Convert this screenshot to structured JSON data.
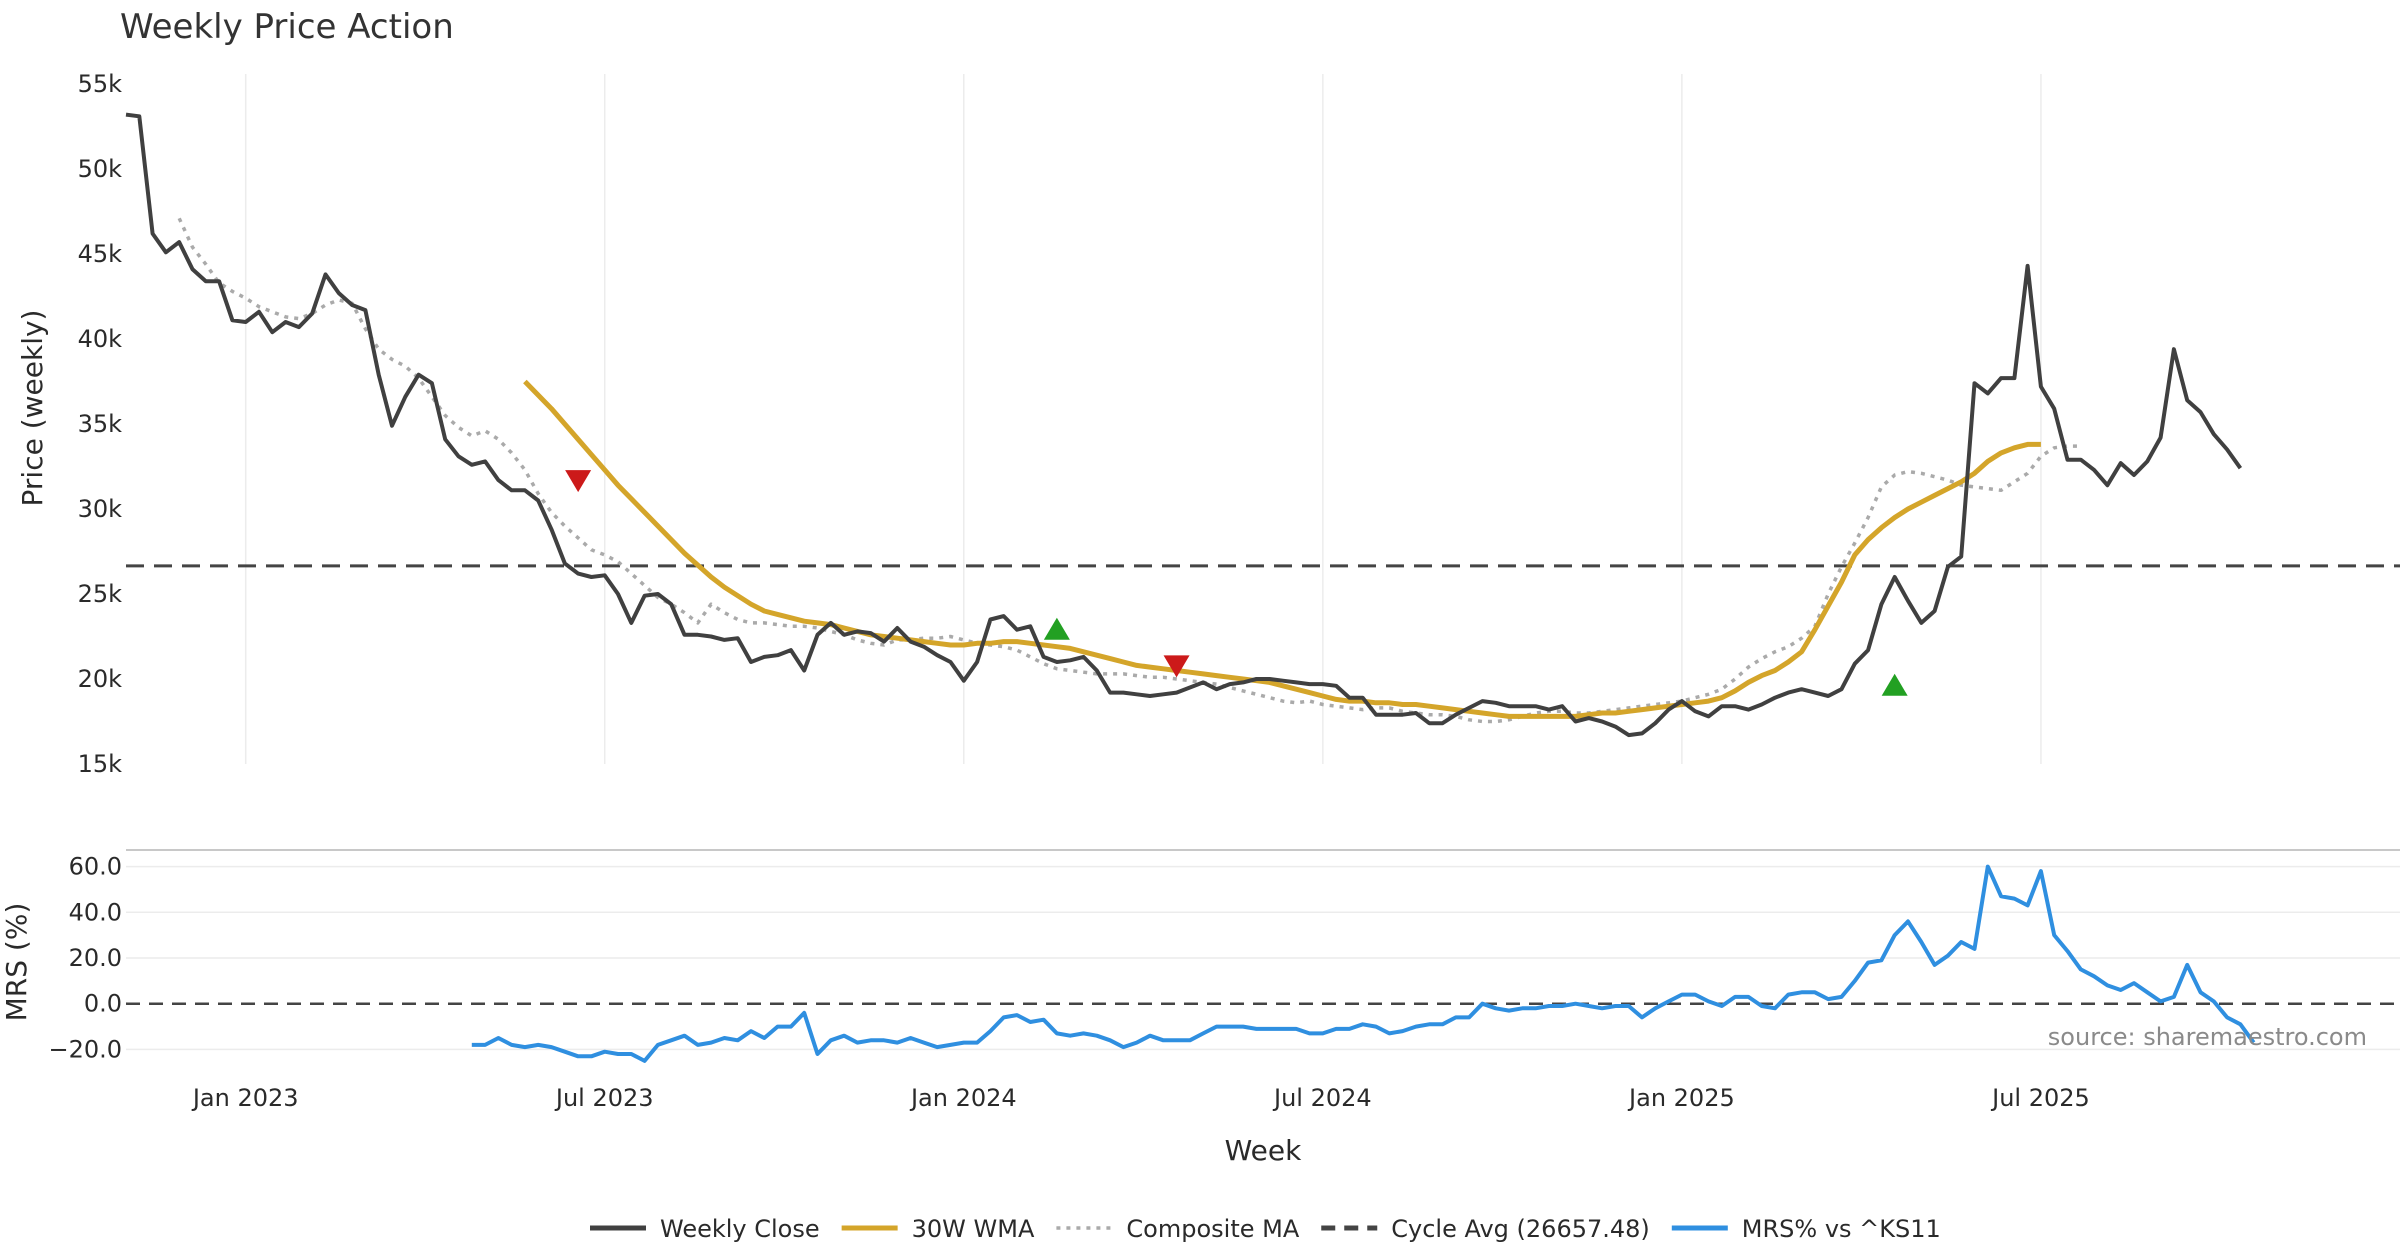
{
  "chart_data": [
    {
      "type": "line",
      "title": "Weekly Price Action",
      "xlabel": "Week",
      "ylabel": "Price (weekly)",
      "ylim": [
        15000,
        55000
      ],
      "y_ticks": [
        15000,
        20000,
        25000,
        30000,
        35000,
        40000,
        45000,
        50000,
        55000
      ],
      "y_tick_labels": [
        "15k",
        "20k",
        "25k",
        "30k",
        "35k",
        "40k",
        "45k",
        "50k",
        "55k"
      ],
      "x_range_weeks": [
        0,
        171
      ],
      "x_ticks": [
        {
          "week": 9,
          "label": "Jan 2023"
        },
        {
          "week": 36,
          "label": "Jul 2023"
        },
        {
          "week": 63,
          "label": "Jan 2024"
        },
        {
          "week": 90,
          "label": "Jul 2024"
        },
        {
          "week": 117,
          "label": "Jan 2025"
        },
        {
          "week": 144,
          "label": "Jul 2025"
        }
      ],
      "grid": "vertical",
      "cycle_avg": 26657.48,
      "series": [
        {
          "name": "Weekly Close",
          "color": "#404040",
          "start_week": 0,
          "values": [
            53200,
            53100,
            46200,
            45100,
            45700,
            44100,
            43400,
            43400,
            41100,
            41000,
            41600,
            40400,
            41000,
            40700,
            41500,
            43800,
            42700,
            42000,
            41700,
            37900,
            34900,
            36600,
            37900,
            37400,
            34100,
            33100,
            32600,
            32800,
            31700,
            31100,
            31100,
            30500,
            28800,
            26800,
            26200,
            26000,
            26100,
            25000,
            23300,
            24900,
            25000,
            24400,
            22600,
            22600,
            22500,
            22300,
            22400,
            21000,
            21300,
            21400,
            21700,
            20500,
            22600,
            23300,
            22600,
            22800,
            22700,
            22200,
            23000,
            22200,
            21900,
            21400,
            21000,
            19900,
            21000,
            23500,
            23700,
            22900,
            23100,
            21300,
            21000,
            21100,
            21300,
            20500,
            19200,
            19200,
            19100,
            19000,
            19100,
            19200,
            19500,
            19800,
            19400,
            19700,
            19800,
            20000,
            20000,
            19900,
            19800,
            19700,
            19700,
            19600,
            18900,
            18900,
            17900,
            17900,
            17900,
            18000,
            17400,
            17400,
            17900,
            18300,
            18700,
            18600,
            18400,
            18400,
            18400,
            18200,
            18400,
            17500,
            17700,
            17500,
            17200,
            16700,
            16800,
            17400,
            18200,
            18700,
            18100,
            17800,
            18400,
            18400,
            18200,
            18500,
            18900,
            19200,
            19400,
            19200,
            19000,
            19400,
            20900,
            21700,
            24400,
            26000,
            24600,
            23300,
            24000,
            26600,
            27200,
            37400,
            36800,
            37700,
            37700,
            44300,
            37200,
            35900,
            32900,
            32900,
            32300,
            31400,
            32700,
            32000,
            32800,
            34200,
            39400,
            36400,
            35700,
            34400,
            33500,
            32400
          ]
        },
        {
          "name": "30W WMA",
          "color": "#d4a52a",
          "start_week": 30,
          "values": [
            37500,
            36700,
            35900,
            35000,
            34100,
            33200,
            32300,
            31400,
            30600,
            29800,
            29000,
            28200,
            27400,
            26700,
            26000,
            25400,
            24900,
            24400,
            24000,
            23800,
            23600,
            23400,
            23300,
            23200,
            23000,
            22800,
            22600,
            22500,
            22400,
            22300,
            22200,
            22100,
            22000,
            22000,
            22100,
            22100,
            22200,
            22200,
            22100,
            22000,
            21900,
            21800,
            21600,
            21400,
            21200,
            21000,
            20800,
            20700,
            20600,
            20500,
            20400,
            20300,
            20200,
            20100,
            20000,
            19900,
            19800,
            19600,
            19400,
            19200,
            19000,
            18800,
            18700,
            18700,
            18600,
            18600,
            18500,
            18500,
            18400,
            18300,
            18200,
            18100,
            18000,
            17900,
            17800,
            17800,
            17800,
            17800,
            17800,
            17800,
            17900,
            18000,
            18000,
            18100,
            18200,
            18300,
            18400,
            18500,
            18600,
            18700,
            18900,
            19300,
            19800,
            20200,
            20500,
            21000,
            21600,
            22900,
            24300,
            25700,
            27300,
            28200,
            28900,
            29500,
            30000,
            30400,
            30800,
            31200,
            31600,
            32100,
            32800,
            33300,
            33600,
            33800,
            33800
          ]
        },
        {
          "name": "Composite MA",
          "color": "#aaaaaa",
          "start_week": 4,
          "values": [
            47100,
            45400,
            44400,
            43300,
            42800,
            42400,
            41900,
            41600,
            41300,
            41200,
            41500,
            42000,
            42300,
            42100,
            40600,
            39400,
            38800,
            38400,
            37700,
            36600,
            35500,
            34800,
            34300,
            34600,
            34100,
            33300,
            32300,
            30900,
            29800,
            29000,
            28300,
            27600,
            27300,
            26900,
            26200,
            25500,
            24800,
            24400,
            23900,
            23300,
            24400,
            23900,
            23500,
            23300,
            23300,
            23200,
            23100,
            23100,
            23000,
            22800,
            22600,
            22300,
            22100,
            22000,
            22300,
            22300,
            22400,
            22400,
            22500,
            22300,
            22100,
            22000,
            21900,
            21700,
            21300,
            20900,
            20600,
            20500,
            20400,
            20300,
            20300,
            20300,
            20200,
            20100,
            20100,
            20000,
            19900,
            19800,
            19700,
            19500,
            19300,
            19100,
            18900,
            18700,
            18600,
            18700,
            18500,
            18400,
            18300,
            18200,
            18300,
            18300,
            18100,
            18000,
            17900,
            17900,
            17800,
            17600,
            17500,
            17500,
            17600,
            17800,
            18000,
            18100,
            18100,
            18000,
            18000,
            18100,
            18200,
            18300,
            18400,
            18500,
            18600,
            18700,
            18900,
            19100,
            19400,
            20000,
            20700,
            21200,
            21600,
            21900,
            22400,
            23100,
            25000,
            26600,
            28000,
            29500,
            31300,
            32000,
            32200,
            32100,
            31900,
            31700,
            31400,
            31300,
            31200,
            31100,
            31600,
            32100,
            33100,
            33600,
            33700,
            33700
          ]
        },
        {
          "name": "Cycle Avg (26657.48)",
          "color": "#444444",
          "style": "dashed",
          "value": 26657.48
        }
      ],
      "signals": [
        {
          "type": "sell",
          "week": 34,
          "price": 31700,
          "color": "#cc1a1a"
        },
        {
          "type": "buy",
          "week": 70,
          "price": 22900,
          "color": "#22a022"
        },
        {
          "type": "sell",
          "week": 79,
          "price": 20800,
          "color": "#cc1a1a"
        },
        {
          "type": "buy",
          "week": 133,
          "price": 19600,
          "color": "#22a022"
        }
      ]
    },
    {
      "type": "line",
      "title": "",
      "xlabel": "Week",
      "ylabel": "MRS (%)",
      "ylim": [
        -22,
        62
      ],
      "y_ticks": [
        -20,
        0,
        20,
        40,
        60
      ],
      "y_tick_labels": [
        "−20.0",
        "0.0",
        "20.0",
        "40.0",
        "60.0"
      ],
      "zero_line": 0,
      "series": [
        {
          "name": "MRS% vs ^KS11",
          "color": "#2f8fe0",
          "start_week": 26,
          "values": [
            -18,
            -18,
            -15,
            -18,
            -19,
            -18,
            -19,
            -21,
            -23,
            -23,
            -21,
            -22,
            -22,
            -25,
            -18,
            -16,
            -14,
            -18,
            -17,
            -15,
            -16,
            -12,
            -15,
            -10,
            -10,
            -4,
            -22,
            -16,
            -14,
            -17,
            -16,
            -16,
            -17,
            -15,
            -17,
            -19,
            -18,
            -17,
            -17,
            -12,
            -6,
            -5,
            -8,
            -7,
            -13,
            -14,
            -13,
            -14,
            -16,
            -19,
            -17,
            -14,
            -16,
            -16,
            -16,
            -13,
            -10,
            -10,
            -10,
            -11,
            -11,
            -11,
            -11,
            -13,
            -13,
            -11,
            -11,
            -9,
            -10,
            -13,
            -12,
            -10,
            -9,
            -9,
            -6,
            -6,
            0,
            -2,
            -3,
            -2,
            -2,
            -1,
            -1,
            0,
            -1,
            -2,
            -1,
            -1,
            -6,
            -2,
            1,
            4,
            4,
            1,
            -1,
            3,
            3,
            -1,
            -2,
            4,
            5,
            5,
            2,
            3,
            10,
            18,
            19,
            30,
            36,
            27,
            17,
            21,
            27,
            24,
            60,
            47,
            46,
            43,
            58,
            30,
            23,
            15,
            12,
            8,
            6,
            9,
            5,
            1,
            3,
            17,
            5,
            1,
            -6,
            -9,
            -17
          ]
        }
      ],
      "annotation": "source: sharemaestro.com"
    }
  ],
  "legend": {
    "items": [
      {
        "label": "Weekly Close",
        "style": "solid",
        "color": "#404040"
      },
      {
        "label": "30W WMA",
        "style": "solid",
        "color": "#d4a52a"
      },
      {
        "label": "Composite MA",
        "style": "dotted",
        "color": "#aaaaaa"
      },
      {
        "label": "Cycle Avg (26657.48)",
        "style": "dashed",
        "color": "#444444"
      },
      {
        "label": "MRS% vs ^KS11",
        "style": "solid",
        "color": "#2f8fe0"
      }
    ]
  }
}
